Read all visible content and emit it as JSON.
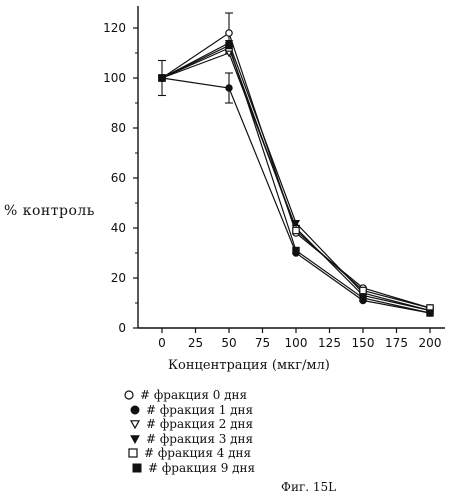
{
  "chart_data": {
    "type": "line",
    "xlabel": "Концентрация (мкг/мл)",
    "ylabel": "% контроль",
    "x": [
      0,
      50,
      100,
      150,
      200
    ],
    "xlim": [
      -20,
      205
    ],
    "ylim": [
      0,
      130
    ],
    "xticks": [
      0,
      25,
      50,
      75,
      100,
      125,
      150,
      175,
      200
    ],
    "yticks": [
      0,
      20,
      40,
      60,
      80,
      100,
      120
    ],
    "grid": false,
    "legend_position": "below",
    "series": [
      {
        "name": "# фракция 0 дня",
        "marker": "circle-open",
        "values": [
          100,
          118,
          38,
          16,
          8
        ]
      },
      {
        "name": "# фракция 1 дня",
        "marker": "circle-filled",
        "values": [
          100,
          96,
          30,
          11,
          6
        ]
      },
      {
        "name": "# фракция 2 дня",
        "marker": "triangle-down-open",
        "values": [
          100,
          110,
          40,
          13,
          7
        ]
      },
      {
        "name": "# фракция 3 дня",
        "marker": "triangle-down-filled",
        "values": [
          100,
          114,
          42,
          14,
          7
        ]
      },
      {
        "name": "# фракция 4 дня",
        "marker": "square-open",
        "values": [
          100,
          112,
          39,
          15,
          8
        ]
      },
      {
        "name": "# фракция 9 дня",
        "marker": "square-filled",
        "values": [
          100,
          113,
          31,
          12,
          6
        ]
      }
    ],
    "error_bars": [
      {
        "x": 0,
        "low": 93,
        "high": 107
      },
      {
        "x": 50,
        "low": 110,
        "high": 126
      },
      {
        "x": 50,
        "low": 90,
        "high": 102
      }
    ]
  },
  "figure_label": "Фиг. 15L"
}
